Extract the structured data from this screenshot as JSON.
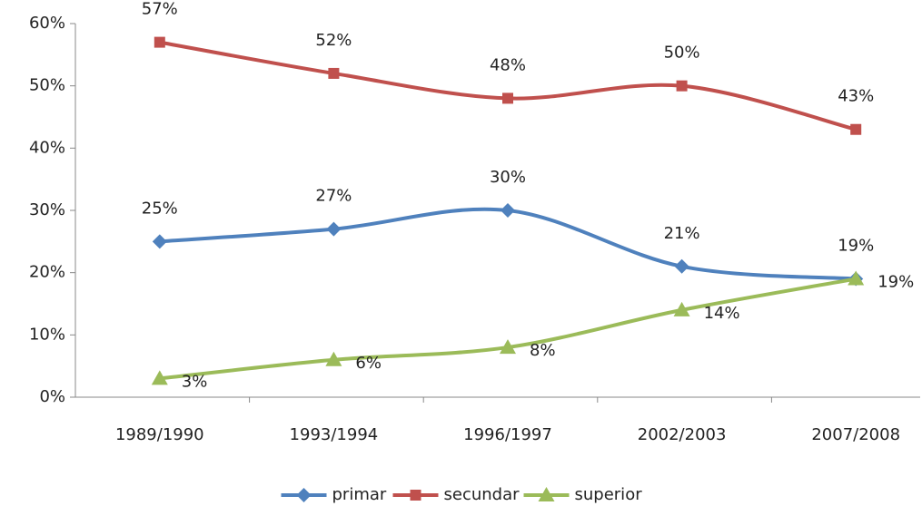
{
  "chart_data": {
    "type": "line",
    "categories": [
      "1989/1990",
      "1993/1994",
      "1996/1997",
      "2002/2003",
      "2007/2008"
    ],
    "series": [
      {
        "name": "primar",
        "color": "#4f81bd",
        "marker": "diamond",
        "values": [
          25,
          27,
          30,
          21,
          19
        ],
        "value_labels": [
          "25%",
          "27%",
          "30%",
          "21%",
          "19%"
        ]
      },
      {
        "name": "secundar",
        "color": "#c0504d",
        "marker": "square",
        "values": [
          57,
          52,
          48,
          50,
          43
        ],
        "value_labels": [
          "57%",
          "52%",
          "48%",
          "50%",
          "43%"
        ]
      },
      {
        "name": "superior",
        "color": "#9bbb59",
        "marker": "triangle",
        "values": [
          3,
          6,
          8,
          14,
          19
        ],
        "value_labels": [
          "3%",
          "6%",
          "8%",
          "14%",
          "19%"
        ]
      }
    ],
    "ylim": [
      0,
      60
    ],
    "yticks": [
      {
        "value": 0,
        "label": "0%"
      },
      {
        "value": 10,
        "label": "10%"
      },
      {
        "value": 20,
        "label": "20%"
      },
      {
        "value": 30,
        "label": "30%"
      },
      {
        "value": 40,
        "label": "40%"
      },
      {
        "value": 50,
        "label": "50%"
      },
      {
        "value": 60,
        "label": "60%"
      }
    ],
    "smooth": true,
    "grid": false,
    "legend": "bottom"
  }
}
